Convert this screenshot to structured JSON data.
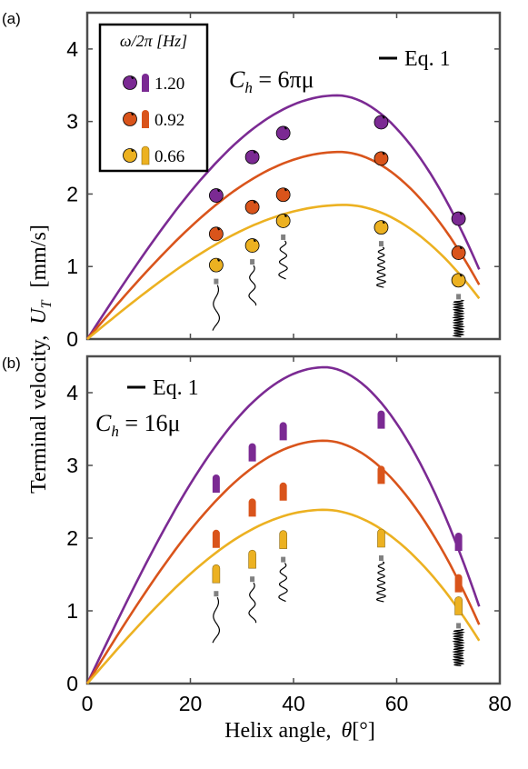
{
  "shared": {
    "ylabel": "Terminal velocity, U_T [mm/s]",
    "ylabel_main": "Terminal velocity,",
    "ylabel_sym": "U",
    "ylabel_sub": "T",
    "ylabel_unit": "[mm/s]",
    "xlabel_main": "Helix angle,",
    "xlabel_sym": "θ",
    "xlabel_unit": "[°]",
    "x_ticks": [
      0,
      20,
      40,
      60,
      80
    ]
  },
  "colors": {
    "purple": "#7b2a93",
    "orange": "#d9541b",
    "yellow": "#ecb121",
    "grey": "#808080",
    "axis": "#4d4d4d"
  },
  "chart_data": [
    {
      "panel": "(a)",
      "type": "line",
      "xlim": [
        0,
        80
      ],
      "ylim": [
        0,
        4.5
      ],
      "y_ticks": [
        0,
        1,
        2,
        3,
        4
      ],
      "annotation": {
        "sym": "C",
        "sub": "h",
        "rhs": " = 6πμ"
      },
      "eq_label": "Eq. 1",
      "legend_title": "ω/2π [Hz]",
      "legend_placement": "top-left",
      "series": [
        {
          "name": "1.20",
          "color": "purple",
          "marker": "sphere",
          "x": [
            25,
            32,
            38,
            57,
            72
          ],
          "y": [
            1.98,
            2.51,
            2.84,
            2.99,
            1.66
          ],
          "curve_peak": 3.36,
          "curve_peak_x": 48.5,
          "curve_end": 0.96
        },
        {
          "name": "0.92",
          "color": "orange",
          "marker": "sphere",
          "x": [
            25,
            32,
            38,
            57,
            72
          ],
          "y": [
            1.45,
            1.82,
            1.99,
            2.49,
            1.19
          ],
          "curve_peak": 2.58,
          "curve_peak_x": 49,
          "curve_end": 0.75
        },
        {
          "name": "0.66",
          "color": "yellow",
          "marker": "sphere",
          "x": [
            25,
            32,
            38,
            57,
            72
          ],
          "y": [
            1.02,
            1.29,
            1.63,
            1.54,
            0.81
          ],
          "curve_peak": 1.85,
          "curve_peak_x": 50,
          "curve_end": 0.56
        }
      ]
    },
    {
      "panel": "(b)",
      "type": "line",
      "xlim": [
        0,
        80
      ],
      "ylim": [
        0,
        4.5
      ],
      "y_ticks": [
        0,
        1,
        2,
        3,
        4
      ],
      "annotation": {
        "sym": "C",
        "sub": "h",
        "rhs": " = 16μ"
      },
      "eq_label": "Eq. 1",
      "series": [
        {
          "name": "1.20",
          "color": "purple",
          "marker": "rod",
          "x": [
            25,
            32,
            38,
            57,
            72
          ],
          "y": [
            2.75,
            3.18,
            3.47,
            3.63,
            1.95
          ],
          "curve_peak": 4.35,
          "curve_peak_x": 46,
          "curve_end": 1.06
        },
        {
          "name": "0.92",
          "color": "orange",
          "marker": "rod",
          "x": [
            25,
            32,
            38,
            57,
            72
          ],
          "y": [
            1.99,
            2.42,
            2.64,
            2.87,
            1.38
          ],
          "curve_peak": 3.34,
          "curve_peak_x": 46,
          "curve_end": 0.81
        },
        {
          "name": "0.66",
          "color": "yellow",
          "marker": "rod",
          "x": [
            25,
            32,
            38,
            57,
            72
          ],
          "y": [
            1.51,
            1.71,
            1.98,
            2.0,
            1.07
          ],
          "curve_peak": 2.39,
          "curve_peak_x": 46,
          "curve_end": 0.59
        }
      ]
    }
  ]
}
